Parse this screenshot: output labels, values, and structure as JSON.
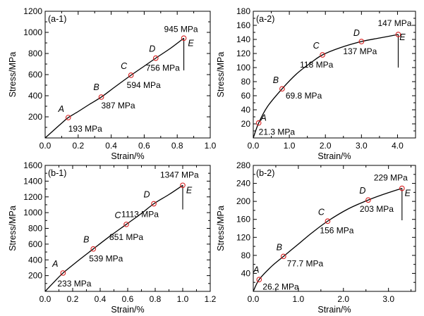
{
  "figure": {
    "background": "#ffffff",
    "marker_color": "#d62020",
    "line_color": "#000000"
  },
  "chart_data": [
    {
      "id": "a-1",
      "type": "line",
      "panel_label": "(a-1)",
      "xlabel": "Strain/%",
      "ylabel": "Stress/MPa",
      "xlim": [
        0,
        1.0
      ],
      "ylim": [
        0,
        1200
      ],
      "xticks": [
        0.0,
        0.2,
        0.4,
        0.6,
        0.8,
        1.0
      ],
      "xtick_labels": [
        "0.0",
        "0.2",
        "0.4",
        "0.6",
        "0.8",
        "1.0"
      ],
      "yticks": [
        200,
        400,
        600,
        800,
        1000,
        1200
      ],
      "ytick_labels": [
        "200",
        "400",
        "600",
        "800",
        "1000",
        "1200"
      ],
      "x": [
        0,
        0.05,
        0.1,
        0.14,
        0.2,
        0.27,
        0.34,
        0.42,
        0.52,
        0.6,
        0.67,
        0.76,
        0.84
      ],
      "y": [
        0,
        70,
        140,
        193,
        250,
        320,
        387,
        480,
        594,
        680,
        756,
        850,
        945
      ],
      "drop": {
        "x": 0.84,
        "y_from": 945,
        "y_to": 640
      },
      "points": [
        {
          "letter": "A",
          "value": "193 MPa",
          "x": 0.14,
          "y": 193
        },
        {
          "letter": "B",
          "value": "387 MPa",
          "x": 0.34,
          "y": 387
        },
        {
          "letter": "C",
          "value": "594 MPa",
          "x": 0.52,
          "y": 594
        },
        {
          "letter": "D",
          "value": "756 MPa",
          "x": 0.67,
          "y": 756
        },
        {
          "letter": "E",
          "value": "945 MPa",
          "x": 0.84,
          "y": 945
        }
      ]
    },
    {
      "id": "a-2",
      "type": "line",
      "panel_label": "(a-2)",
      "xlabel": "Strain/%",
      "ylabel": "Stress/MPa",
      "xlim": [
        0,
        4.5
      ],
      "ylim": [
        0,
        180
      ],
      "xticks": [
        0.0,
        1.0,
        2.0,
        3.0,
        4.0
      ],
      "xtick_labels": [
        "0.0",
        "1.0",
        "2.0",
        "3.0",
        "4.0"
      ],
      "yticks": [
        20,
        40,
        60,
        80,
        100,
        120,
        140,
        160,
        180
      ],
      "ytick_labels": [
        "20",
        "40",
        "60",
        "80",
        "100",
        "120",
        "140",
        "160",
        "180"
      ],
      "x": [
        0,
        0.15,
        0.4,
        0.8,
        1.2,
        1.6,
        1.92,
        2.4,
        3.0,
        3.5,
        4.02
      ],
      "y": [
        0,
        21.3,
        45,
        69.8,
        91,
        107,
        118,
        128,
        137,
        142,
        147
      ],
      "drop": {
        "x": 4.02,
        "y_from": 147,
        "y_to": 100
      },
      "points": [
        {
          "letter": "A",
          "value": "21.3 MPa",
          "x": 0.15,
          "y": 21.3
        },
        {
          "letter": "B",
          "value": "69.8 MPa",
          "x": 0.8,
          "y": 69.8
        },
        {
          "letter": "C",
          "value": "118 MPa",
          "x": 1.92,
          "y": 118
        },
        {
          "letter": "D",
          "value": "137 MPa",
          "x": 3.0,
          "y": 137
        },
        {
          "letter": "E",
          "value": "147 MPa",
          "x": 4.02,
          "y": 147
        }
      ]
    },
    {
      "id": "b-1",
      "type": "line",
      "panel_label": "(b-1)",
      "xlabel": "Strain/%",
      "ylabel": "Stress/MPa",
      "xlim": [
        0,
        1.2
      ],
      "ylim": [
        0,
        1600
      ],
      "xticks": [
        0.0,
        0.2,
        0.4,
        0.6,
        0.8,
        1.0,
        1.2
      ],
      "xtick_labels": [
        "0.0",
        "0.2",
        "0.4",
        "0.6",
        "0.8",
        "1.0",
        "1.2"
      ],
      "yticks": [
        200,
        400,
        600,
        800,
        1000,
        1200,
        1400,
        1600
      ],
      "ytick_labels": [
        "200",
        "400",
        "600",
        "800",
        "1000",
        "1200",
        "1400",
        "1600"
      ],
      "x": [
        0,
        0.06,
        0.13,
        0.24,
        0.35,
        0.47,
        0.59,
        0.7,
        0.79,
        0.9,
        1.0
      ],
      "y": [
        0,
        110,
        233,
        390,
        539,
        700,
        851,
        990,
        1113,
        1230,
        1347
      ],
      "drop": {
        "x": 1.0,
        "y_from": 1347,
        "y_to": 1040
      },
      "points": [
        {
          "letter": "A",
          "value": "233 MPa",
          "x": 0.13,
          "y": 233
        },
        {
          "letter": "B",
          "value": "539 MPa",
          "x": 0.35,
          "y": 539
        },
        {
          "letter": "C",
          "value": "851 MPa",
          "x": 0.59,
          "y": 851
        },
        {
          "letter": "D",
          "value": "1113 MPa",
          "x": 0.79,
          "y": 1113
        },
        {
          "letter": "E",
          "value": "1347 MPa",
          "x": 1.0,
          "y": 1347
        }
      ]
    },
    {
      "id": "b-2",
      "type": "line",
      "panel_label": "(b-2)",
      "xlabel": "Strain/%",
      "ylabel": "Stress/MPa",
      "xlim": [
        0,
        3.6
      ],
      "ylim": [
        0,
        280
      ],
      "xticks": [
        0.0,
        1.0,
        2.0,
        3.0
      ],
      "xtick_labels": [
        "0.0",
        "1.0",
        "2.0",
        "3.0"
      ],
      "yticks": [
        40,
        80,
        120,
        160,
        200,
        240,
        280
      ],
      "ytick_labels": [
        "40",
        "80",
        "120",
        "160",
        "200",
        "240",
        "280"
      ],
      "x": [
        0,
        0.13,
        0.4,
        0.67,
        1.0,
        1.3,
        1.65,
        2.1,
        2.55,
        2.9,
        3.3
      ],
      "y": [
        0,
        26.2,
        55,
        77.7,
        105,
        130,
        156,
        183,
        203,
        216,
        229
      ],
      "drop": {
        "x": 3.3,
        "y_from": 229,
        "y_to": 158
      },
      "points": [
        {
          "letter": "A",
          "value": "26.2 MPa",
          "x": 0.13,
          "y": 26.2
        },
        {
          "letter": "B",
          "value": "77.7 MPa",
          "x": 0.67,
          "y": 77.7
        },
        {
          "letter": "C",
          "value": "156 MPa",
          "x": 1.65,
          "y": 156
        },
        {
          "letter": "D",
          "value": "203 MPa",
          "x": 2.55,
          "y": 203
        },
        {
          "letter": "E",
          "value": "229 MPa",
          "x": 3.3,
          "y": 229
        }
      ]
    }
  ]
}
